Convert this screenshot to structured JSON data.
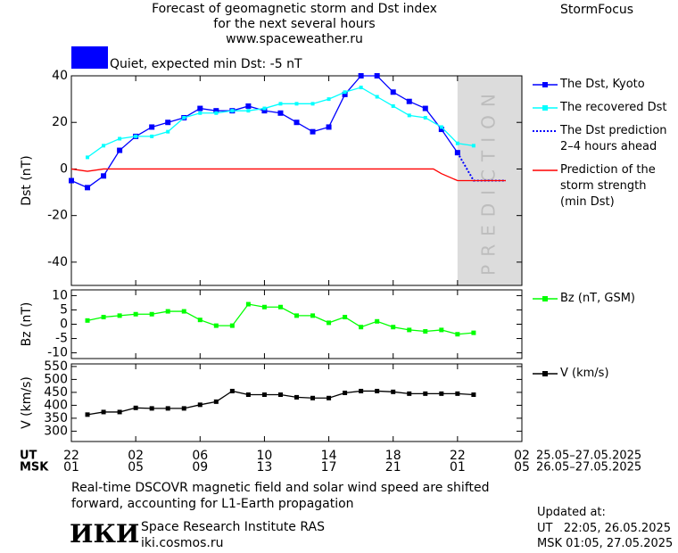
{
  "header": {
    "title": "Forecast of geomagnetic storm and Dst index\nfor the next several hours\nwww.spaceweather.ru",
    "brand": "StormFocus",
    "status": {
      "text": "Quiet, expected min Dst: -5 nT",
      "color": "#0000ff"
    }
  },
  "chart_data": [
    {
      "type": "line",
      "ylabel": "Dst (nT)",
      "xlim": [
        0,
        28
      ],
      "ylim": [
        -50,
        40
      ],
      "yticks": [
        40,
        20,
        0,
        -20,
        -40
      ],
      "prediction_band": [
        24,
        28
      ],
      "prediction_label": "PREDICTION",
      "series": [
        {
          "name": "The Dst, Kyoto",
          "color": "#0000ff",
          "marker": true,
          "marker_size": 6,
          "style": "solid",
          "x": [
            0,
            1,
            2,
            3,
            4,
            5,
            6,
            7,
            8,
            9,
            10,
            11,
            12,
            13,
            14,
            15,
            16,
            17,
            18,
            19,
            20,
            21,
            22,
            23,
            24
          ],
          "values": [
            -5,
            -8,
            -3,
            8,
            14,
            18,
            20,
            22,
            26,
            25,
            25,
            27,
            25,
            24,
            20,
            16,
            18,
            32,
            40,
            40,
            33,
            29,
            26,
            17,
            7
          ]
        },
        {
          "name": "The recovered Dst",
          "color": "#00ffff",
          "marker": true,
          "marker_size": 4,
          "style": "solid",
          "x": [
            1,
            2,
            3,
            4,
            5,
            6,
            7,
            8,
            9,
            10,
            11,
            12,
            13,
            14,
            15,
            16,
            17,
            18,
            19,
            20,
            21,
            22,
            23,
            24,
            25
          ],
          "values": [
            5,
            10,
            13,
            14,
            14,
            16,
            22,
            24,
            24,
            25,
            25,
            26,
            28,
            28,
            28,
            30,
            33,
            35,
            31,
            27,
            23,
            22,
            18,
            11,
            10
          ]
        },
        {
          "name": "The Dst prediction\n2–4 hours ahead",
          "color": "#0000ff",
          "marker": false,
          "style": "dotted",
          "x": [
            24,
            25,
            26,
            27
          ],
          "values": [
            7,
            -5,
            -5,
            -5
          ]
        },
        {
          "name": "Prediction of the\nstorm strength\n(min Dst)",
          "color": "#ff0000",
          "marker": false,
          "style": "solid",
          "x": [
            0,
            1,
            2,
            22.5,
            23,
            24,
            27
          ],
          "values": [
            0,
            -1,
            0,
            0,
            -2,
            -5,
            -5
          ]
        }
      ]
    },
    {
      "type": "line",
      "ylabel": "Bz (nT)",
      "xlim": [
        0,
        28
      ],
      "ylim": [
        -12,
        12
      ],
      "yticks": [
        10,
        5,
        0,
        -5,
        -10
      ],
      "series": [
        {
          "name": "Bz (nT, GSM)",
          "color": "#00ff00",
          "marker": true,
          "marker_size": 5,
          "style": "solid",
          "x": [
            1,
            2,
            3,
            4,
            5,
            6,
            7,
            8,
            9,
            10,
            11,
            12,
            13,
            14,
            15,
            16,
            17,
            18,
            19,
            20,
            21,
            22,
            23,
            24,
            25
          ],
          "values": [
            1.3,
            2.5,
            3,
            3.5,
            3.5,
            4.5,
            4.5,
            1.5,
            -0.5,
            -0.5,
            7,
            6,
            6,
            3,
            3,
            0.5,
            2.5,
            -1,
            1,
            -1,
            -2,
            -2.5,
            -2,
            -3.5,
            -3
          ]
        }
      ]
    },
    {
      "type": "line",
      "ylabel": "V (km/s)",
      "xlim": [
        0,
        28
      ],
      "ylim": [
        260,
        560
      ],
      "yticks": [
        550,
        500,
        450,
        400,
        350,
        300
      ],
      "xticks": [
        {
          "value": 0,
          "label": "22"
        },
        {
          "value": 4,
          "label": "02"
        },
        {
          "value": 8,
          "label": "06"
        },
        {
          "value": 12,
          "label": "10"
        },
        {
          "value": 16,
          "label": "14"
        },
        {
          "value": 20,
          "label": "18"
        },
        {
          "value": 24,
          "label": "22"
        },
        {
          "value": 28,
          "label": "02"
        }
      ],
      "xticks2": [
        {
          "value": 0,
          "label": "01"
        },
        {
          "value": 4,
          "label": "05"
        },
        {
          "value": 8,
          "label": "09"
        },
        {
          "value": 12,
          "label": "13"
        },
        {
          "value": 16,
          "label": "17"
        },
        {
          "value": 20,
          "label": "21"
        },
        {
          "value": 24,
          "label": "01"
        },
        {
          "value": 28,
          "label": "05"
        }
      ],
      "xtick_row_labels": [
        "UT",
        "MSK"
      ],
      "xtick_row_dates": [
        "25.05–27.05.2025",
        "26.05–27.05.2025"
      ],
      "series": [
        {
          "name": "V (km/s)",
          "color": "#000000",
          "marker": true,
          "marker_size": 5,
          "style": "solid",
          "x": [
            1,
            2,
            3,
            4,
            5,
            6,
            7,
            8,
            9,
            10,
            11,
            12,
            13,
            14,
            15,
            16,
            17,
            18,
            19,
            20,
            21,
            22,
            23,
            24,
            25
          ],
          "values": [
            364,
            374,
            374,
            390,
            388,
            388,
            388,
            402,
            414,
            455,
            441,
            441,
            441,
            431,
            428,
            428,
            448,
            455,
            455,
            452,
            445,
            445,
            445,
            445,
            441
          ]
        }
      ]
    }
  ],
  "footer": {
    "note": "Real-time DSCOVR magnetic field and solar wind speed are shifted\nforward, accounting for L1-Earth propagation",
    "logo": "ИКИ",
    "org": "Space Research Institute RAS",
    "url": "iki.cosmos.ru",
    "updated": "Updated at:",
    "ut": "UT   22:05, 26.05.2025",
    "msk": "MSK 01:05, 27.05.2025"
  }
}
